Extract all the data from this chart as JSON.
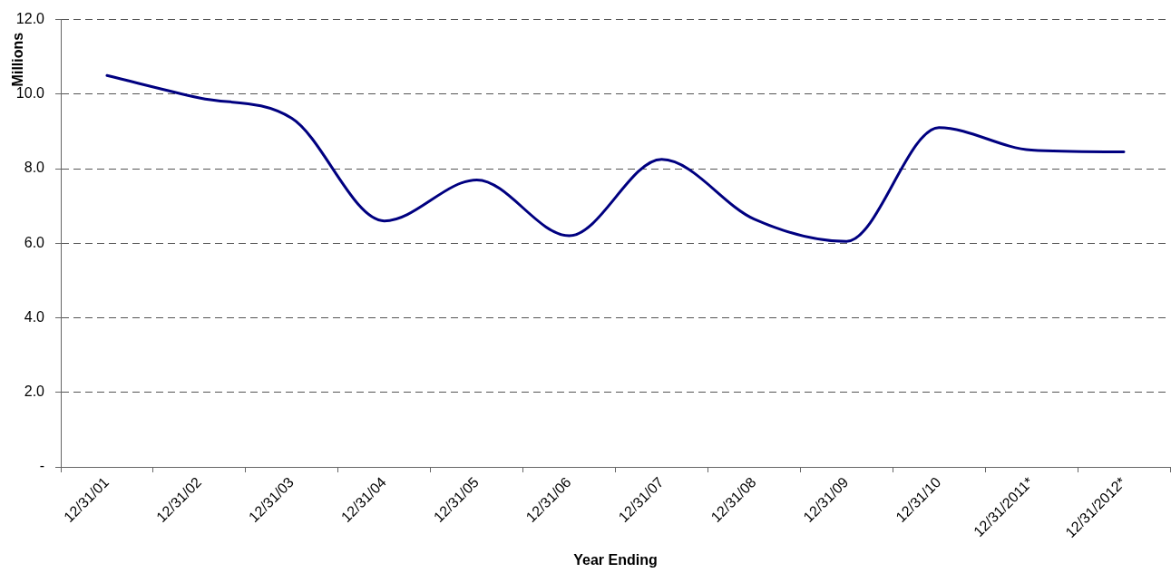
{
  "chart_data": {
    "type": "line",
    "xlabel": "Year Ending",
    "ylabel": "Millions",
    "categories": [
      "12/31/01",
      "12/31/02",
      "12/31/03",
      "12/31/04",
      "12/31/05",
      "12/31/06",
      "12/31/07",
      "12/31/08",
      "12/31/09",
      "12/31/10",
      "12/31/2011*",
      "12/31/2012*"
    ],
    "series": [
      {
        "color": "#000080",
        "values": [
          10.5,
          9.9,
          9.35,
          6.6,
          7.7,
          6.2,
          8.25,
          6.65,
          6.05,
          9.1,
          8.5,
          8.45
        ]
      }
    ],
    "ylim": [
      0,
      12
    ],
    "yticks": [
      {
        "value": 0,
        "label": "-"
      },
      {
        "value": 2,
        "label": "2.0"
      },
      {
        "value": 4,
        "label": "4.0"
      },
      {
        "value": 6,
        "label": "6.0"
      },
      {
        "value": 8,
        "label": "8.0"
      },
      {
        "value": 10,
        "label": "10.0"
      },
      {
        "value": 12,
        "label": "12.0"
      }
    ],
    "grid": "y",
    "marker": "none",
    "line_style": "solid"
  }
}
